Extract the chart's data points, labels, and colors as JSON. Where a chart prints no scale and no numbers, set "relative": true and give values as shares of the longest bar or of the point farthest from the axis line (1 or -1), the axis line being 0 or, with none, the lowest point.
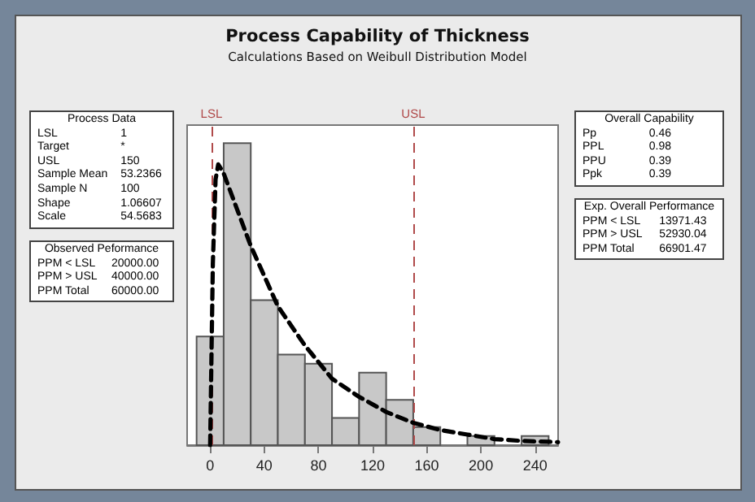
{
  "chart_data": [
    {
      "type": "histogram",
      "title": "Process Capability of Thickness",
      "subtitle": "Calculations Based on Weibull Distribution Model",
      "relative": true,
      "bins": [
        -10,
        10,
        30,
        50,
        70,
        90,
        110,
        130,
        150,
        170,
        190,
        210,
        230,
        250
      ],
      "values": [
        0.36,
        1,
        0.48,
        0.3,
        0.27,
        0.09,
        0.24,
        0.15,
        0.06,
        0,
        0.03,
        0,
        0.03
      ],
      "color": "#c8c8c8",
      "series": [
        {
          "type": "line",
          "color": "#000000",
          "line_style": "dashed",
          "x": [
            0,
            2,
            4,
            6,
            10,
            20,
            30,
            50,
            70,
            90,
            110,
            130,
            150,
            170,
            190,
            210,
            230,
            257
          ],
          "values": [
            0,
            0.6,
            0.88,
            0.93,
            0.9,
            0.78,
            0.66,
            0.46,
            0.33,
            0.22,
            0.16,
            0.11,
            0.074,
            0.05,
            0.035,
            0.02,
            0.014,
            0.01
          ]
        }
      ],
      "xlim": [
        -17,
        257
      ],
      "xticks": [
        0,
        40,
        80,
        120,
        160,
        200,
        240
      ],
      "tick_labels": "x",
      "grid": false,
      "marker": "none",
      "ref_lines": [
        {
          "axis": "x",
          "value": 1,
          "label": "LSL",
          "color": "#b04a4a",
          "line_style": "dashed"
        },
        {
          "axis": "x",
          "value": 150,
          "label": "USL",
          "color": "#b04a4a",
          "line_style": "dashed"
        }
      ]
    },
    {
      "type": "other",
      "title": "Process Data",
      "categories": [
        "LSL",
        "Target",
        "USL",
        "Sample Mean",
        "Sample N",
        "Shape",
        "Scale"
      ],
      "value_labels": [
        "1",
        "*",
        "150",
        "53.2366",
        "100",
        "1.06607",
        "54.5683"
      ]
    },
    {
      "type": "other",
      "title": "Observed Peformance",
      "categories": [
        "PPM < LSL",
        "PPM > USL",
        "PPM Total"
      ],
      "value_labels": [
        "20000.00",
        "40000.00",
        "60000.00"
      ]
    },
    {
      "type": "other",
      "title": "Overall Capability",
      "categories": [
        "Pp",
        "PPL",
        "PPU",
        "Ppk"
      ],
      "value_labels": [
        "0.46",
        "0.98",
        "0.39",
        "0.39"
      ]
    },
    {
      "type": "other",
      "title": "Exp. Overall Performance",
      "categories": [
        "PPM < LSL",
        "PPM > USL",
        "PPM Total"
      ],
      "value_labels": [
        "13971.43",
        "52930.04",
        "66901.47"
      ]
    }
  ]
}
